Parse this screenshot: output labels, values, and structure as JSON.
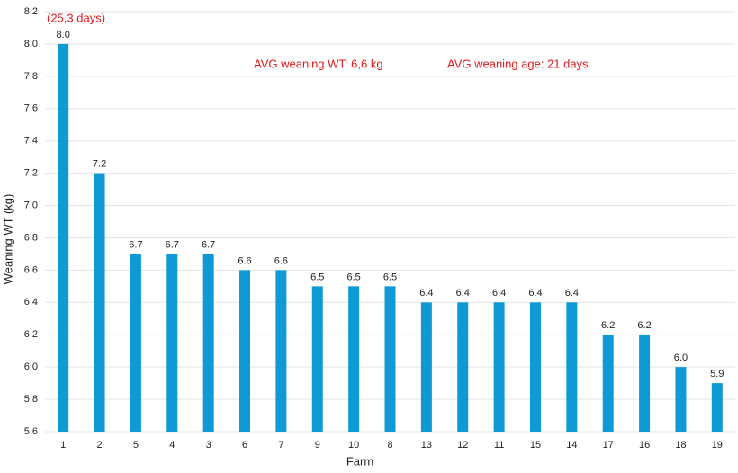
{
  "chart_data": {
    "type": "bar",
    "x_label": "Farm",
    "y_label": "Weaning WT (kg)",
    "annotations": [
      "(25,3 days)",
      "AVG weaning WT: 6,6 kg",
      "AVG weaning age: 21 days"
    ],
    "categories": [
      "1",
      "2",
      "5",
      "4",
      "3",
      "6",
      "7",
      "9",
      "10",
      "8",
      "13",
      "12",
      "11",
      "15",
      "14",
      "17",
      "16",
      "18",
      "19"
    ],
    "values": [
      8.0,
      7.2,
      6.7,
      6.7,
      6.7,
      6.6,
      6.6,
      6.5,
      6.5,
      6.5,
      6.4,
      6.4,
      6.4,
      6.4,
      6.4,
      6.2,
      6.2,
      6.0,
      5.9
    ],
    "value_labels": [
      "8.0",
      "7.2",
      "6.7",
      "6.7",
      "6.7",
      "6.6",
      "6.6",
      "6.5",
      "6.5",
      "6.5",
      "6.4",
      "6.4",
      "6.4",
      "6.4",
      "6.4",
      "6.2",
      "6.2",
      "6.0",
      "5.9"
    ],
    "color": "#0f9ad6",
    "ylim": [
      5.6,
      8.2
    ],
    "yticks": [
      5.6,
      5.8,
      {
        "value": 6,
        "label": "6.0"
      },
      6.2,
      6.4,
      6.6,
      6.8,
      {
        "value": 7,
        "label": "7.0"
      },
      7.2,
      7.4,
      7.6,
      7.8,
      {
        "value": 8,
        "label": "8.0"
      },
      8.2
    ],
    "grid": true
  }
}
